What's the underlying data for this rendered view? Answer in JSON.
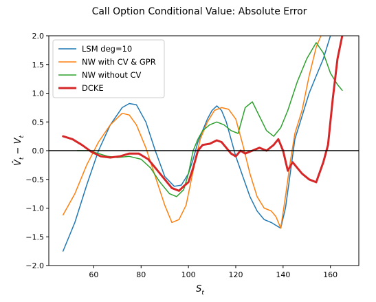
{
  "chart_data": {
    "type": "line",
    "title": "Call Option Conditional Value: Absolute Error",
    "xlabel": "S_t",
    "ylabel": "V̂_t − V_t",
    "xlim": [
      41,
      172
    ],
    "ylim": [
      -2.0,
      2.0
    ],
    "x_ticks": [
      60,
      80,
      100,
      120,
      140,
      160
    ],
    "y_ticks": [
      -2.0,
      -1.5,
      -1.0,
      -0.5,
      0.0,
      0.5,
      1.0,
      1.5,
      2.0
    ],
    "x_tick_labels": [
      "60",
      "80",
      "100",
      "120",
      "140",
      "160"
    ],
    "y_tick_labels": [
      "−2.0",
      "−1.5",
      "−1.0",
      "−0.5",
      "0.0",
      "0.5",
      "1.0",
      "1.5",
      "2.0"
    ],
    "grid": false,
    "legend_position": "upper left",
    "zero_line": true,
    "series": [
      {
        "name": "LSM deg=10",
        "color": "#1f77b4",
        "width": 1.5,
        "points": [
          [
            47,
            -1.75
          ],
          [
            52,
            -1.25
          ],
          [
            57,
            -0.6
          ],
          [
            62,
            0.0
          ],
          [
            67,
            0.45
          ],
          [
            72,
            0.75
          ],
          [
            75,
            0.82
          ],
          [
            78,
            0.8
          ],
          [
            82,
            0.5
          ],
          [
            86,
            0.0
          ],
          [
            90,
            -0.45
          ],
          [
            94,
            -0.62
          ],
          [
            97,
            -0.6
          ],
          [
            100,
            -0.4
          ],
          [
            102,
            -0.15
          ],
          [
            104,
            0.15
          ],
          [
            106,
            0.35
          ],
          [
            108,
            0.55
          ],
          [
            110,
            0.7
          ],
          [
            112,
            0.78
          ],
          [
            114,
            0.7
          ],
          [
            116,
            0.5
          ],
          [
            118,
            0.2
          ],
          [
            120,
            -0.1
          ],
          [
            123,
            -0.45
          ],
          [
            126,
            -0.8
          ],
          [
            129,
            -1.05
          ],
          [
            132,
            -1.2
          ],
          [
            135,
            -1.25
          ],
          [
            137,
            -1.3
          ],
          [
            139,
            -1.35
          ],
          [
            141,
            -1.0
          ],
          [
            143,
            -0.4
          ],
          [
            145,
            0.2
          ],
          [
            148,
            0.6
          ],
          [
            151,
            1.0
          ],
          [
            154,
            1.3
          ],
          [
            157,
            1.6
          ],
          [
            160,
            2.0
          ]
        ]
      },
      {
        "name": "NW with CV & GPR",
        "color": "#ff7f0e",
        "width": 1.5,
        "points": [
          [
            47,
            -1.12
          ],
          [
            52,
            -0.75
          ],
          [
            57,
            -0.25
          ],
          [
            62,
            0.15
          ],
          [
            67,
            0.45
          ],
          [
            72,
            0.65
          ],
          [
            75,
            0.62
          ],
          [
            78,
            0.45
          ],
          [
            82,
            0.05
          ],
          [
            86,
            -0.45
          ],
          [
            90,
            -0.95
          ],
          [
            93,
            -1.25
          ],
          [
            96,
            -1.2
          ],
          [
            99,
            -0.95
          ],
          [
            101,
            -0.55
          ],
          [
            103,
            -0.15
          ],
          [
            105,
            0.2
          ],
          [
            108,
            0.5
          ],
          [
            111,
            0.7
          ],
          [
            114,
            0.75
          ],
          [
            117,
            0.72
          ],
          [
            120,
            0.55
          ],
          [
            123,
            0.1
          ],
          [
            126,
            -0.4
          ],
          [
            129,
            -0.8
          ],
          [
            132,
            -1.0
          ],
          [
            135,
            -1.05
          ],
          [
            137,
            -1.15
          ],
          [
            139,
            -1.35
          ],
          [
            141,
            -0.8
          ],
          [
            143,
            -0.2
          ],
          [
            145,
            0.3
          ],
          [
            148,
            0.7
          ],
          [
            151,
            1.3
          ],
          [
            154,
            1.8
          ],
          [
            156,
            2.0
          ]
        ]
      },
      {
        "name": "NW without CV",
        "color": "#2ca02c",
        "width": 1.5,
        "points": [
          [
            53,
            0.0
          ],
          [
            58,
            0.0
          ],
          [
            62,
            -0.05
          ],
          [
            66,
            -0.1
          ],
          [
            70,
            -0.12
          ],
          [
            75,
            -0.1
          ],
          [
            80,
            -0.15
          ],
          [
            84,
            -0.3
          ],
          [
            88,
            -0.55
          ],
          [
            92,
            -0.75
          ],
          [
            95,
            -0.8
          ],
          [
            98,
            -0.68
          ],
          [
            100,
            -0.4
          ],
          [
            102,
            0.0
          ],
          [
            104,
            0.2
          ],
          [
            106,
            0.35
          ],
          [
            109,
            0.45
          ],
          [
            112,
            0.5
          ],
          [
            115,
            0.45
          ],
          [
            118,
            0.35
          ],
          [
            121,
            0.3
          ],
          [
            124,
            0.75
          ],
          [
            127,
            0.85
          ],
          [
            130,
            0.6
          ],
          [
            133,
            0.35
          ],
          [
            136,
            0.25
          ],
          [
            139,
            0.4
          ],
          [
            142,
            0.7
          ],
          [
            146,
            1.2
          ],
          [
            150,
            1.6
          ],
          [
            154,
            1.88
          ],
          [
            157,
            1.7
          ],
          [
            160,
            1.35
          ],
          [
            163,
            1.15
          ],
          [
            165,
            1.05
          ]
        ]
      },
      {
        "name": "DCKE",
        "color": "#d62728",
        "width": 3,
        "points": [
          [
            47,
            0.25
          ],
          [
            51,
            0.2
          ],
          [
            55,
            0.1
          ],
          [
            59,
            -0.02
          ],
          [
            63,
            -0.1
          ],
          [
            67,
            -0.12
          ],
          [
            71,
            -0.1
          ],
          [
            75,
            -0.05
          ],
          [
            79,
            -0.05
          ],
          [
            83,
            -0.15
          ],
          [
            87,
            -0.35
          ],
          [
            90,
            -0.5
          ],
          [
            93,
            -0.65
          ],
          [
            96,
            -0.7
          ],
          [
            98,
            -0.62
          ],
          [
            100,
            -0.55
          ],
          [
            102,
            -0.3
          ],
          [
            104,
            0.0
          ],
          [
            106,
            0.1
          ],
          [
            109,
            0.12
          ],
          [
            112,
            0.18
          ],
          [
            114,
            0.15
          ],
          [
            116,
            0.05
          ],
          [
            118,
            -0.05
          ],
          [
            120,
            -0.1
          ],
          [
            122,
            0.0
          ],
          [
            124,
            -0.05
          ],
          [
            127,
            0.0
          ],
          [
            130,
            0.05
          ],
          [
            133,
            0.0
          ],
          [
            136,
            0.1
          ],
          [
            138,
            0.2
          ],
          [
            140,
            0.0
          ],
          [
            142,
            -0.35
          ],
          [
            144,
            -0.2
          ],
          [
            146,
            -0.3
          ],
          [
            148,
            -0.4
          ],
          [
            151,
            -0.5
          ],
          [
            154,
            -0.55
          ],
          [
            157,
            -0.2
          ],
          [
            159,
            0.1
          ],
          [
            161,
            0.9
          ],
          [
            163,
            1.6
          ],
          [
            165,
            2.0
          ]
        ]
      }
    ]
  }
}
